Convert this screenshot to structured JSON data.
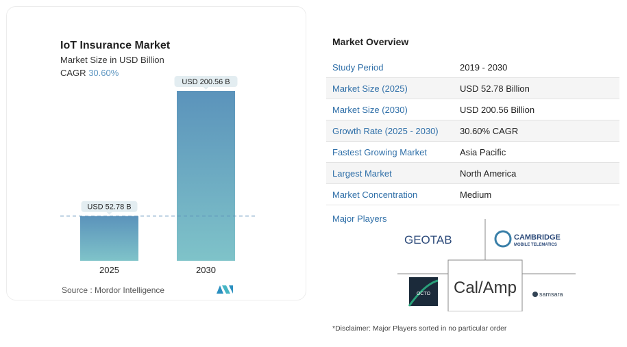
{
  "chart_data": {
    "type": "bar",
    "title": "IoT Insurance Market",
    "subtitle": "Market Size in USD Billion",
    "cagr_label": "CAGR",
    "cagr_value": "30.60%",
    "categories": [
      "2025",
      "2030"
    ],
    "values": [
      52.78,
      200.56
    ],
    "data_labels": [
      "USD 52.78 B",
      "USD 200.56 B"
    ],
    "ylim": [
      0,
      200.56
    ],
    "colors": {
      "top": "#5b93bb",
      "bottom": "#7fc3c9"
    }
  },
  "source": "Source :  Mordor Intelligence",
  "overview": {
    "title": "Market Overview",
    "rows": [
      {
        "k": "Study Period",
        "v": "2019 - 2030"
      },
      {
        "k": "Market Size (2025)",
        "v": "USD 52.78 Billion"
      },
      {
        "k": "Market Size (2030)",
        "v": "USD 200.56 Billion"
      },
      {
        "k": "Growth Rate (2025 - 2030)",
        "v": "30.60% CAGR"
      },
      {
        "k": "Fastest Growing Market",
        "v": "Asia Pacific"
      },
      {
        "k": "Largest Market",
        "v": "North America"
      },
      {
        "k": "Market Concentration",
        "v": "Medium"
      }
    ],
    "major_players_label": "Major Players",
    "players": [
      "GEOTAB",
      "CAMBRIDGE",
      "MOBILE TELEMATICS",
      "OCTO",
      "Cal/Amp",
      "samsara"
    ]
  },
  "disclaimer": "*Disclaimer: Major Players sorted in no particular order"
}
